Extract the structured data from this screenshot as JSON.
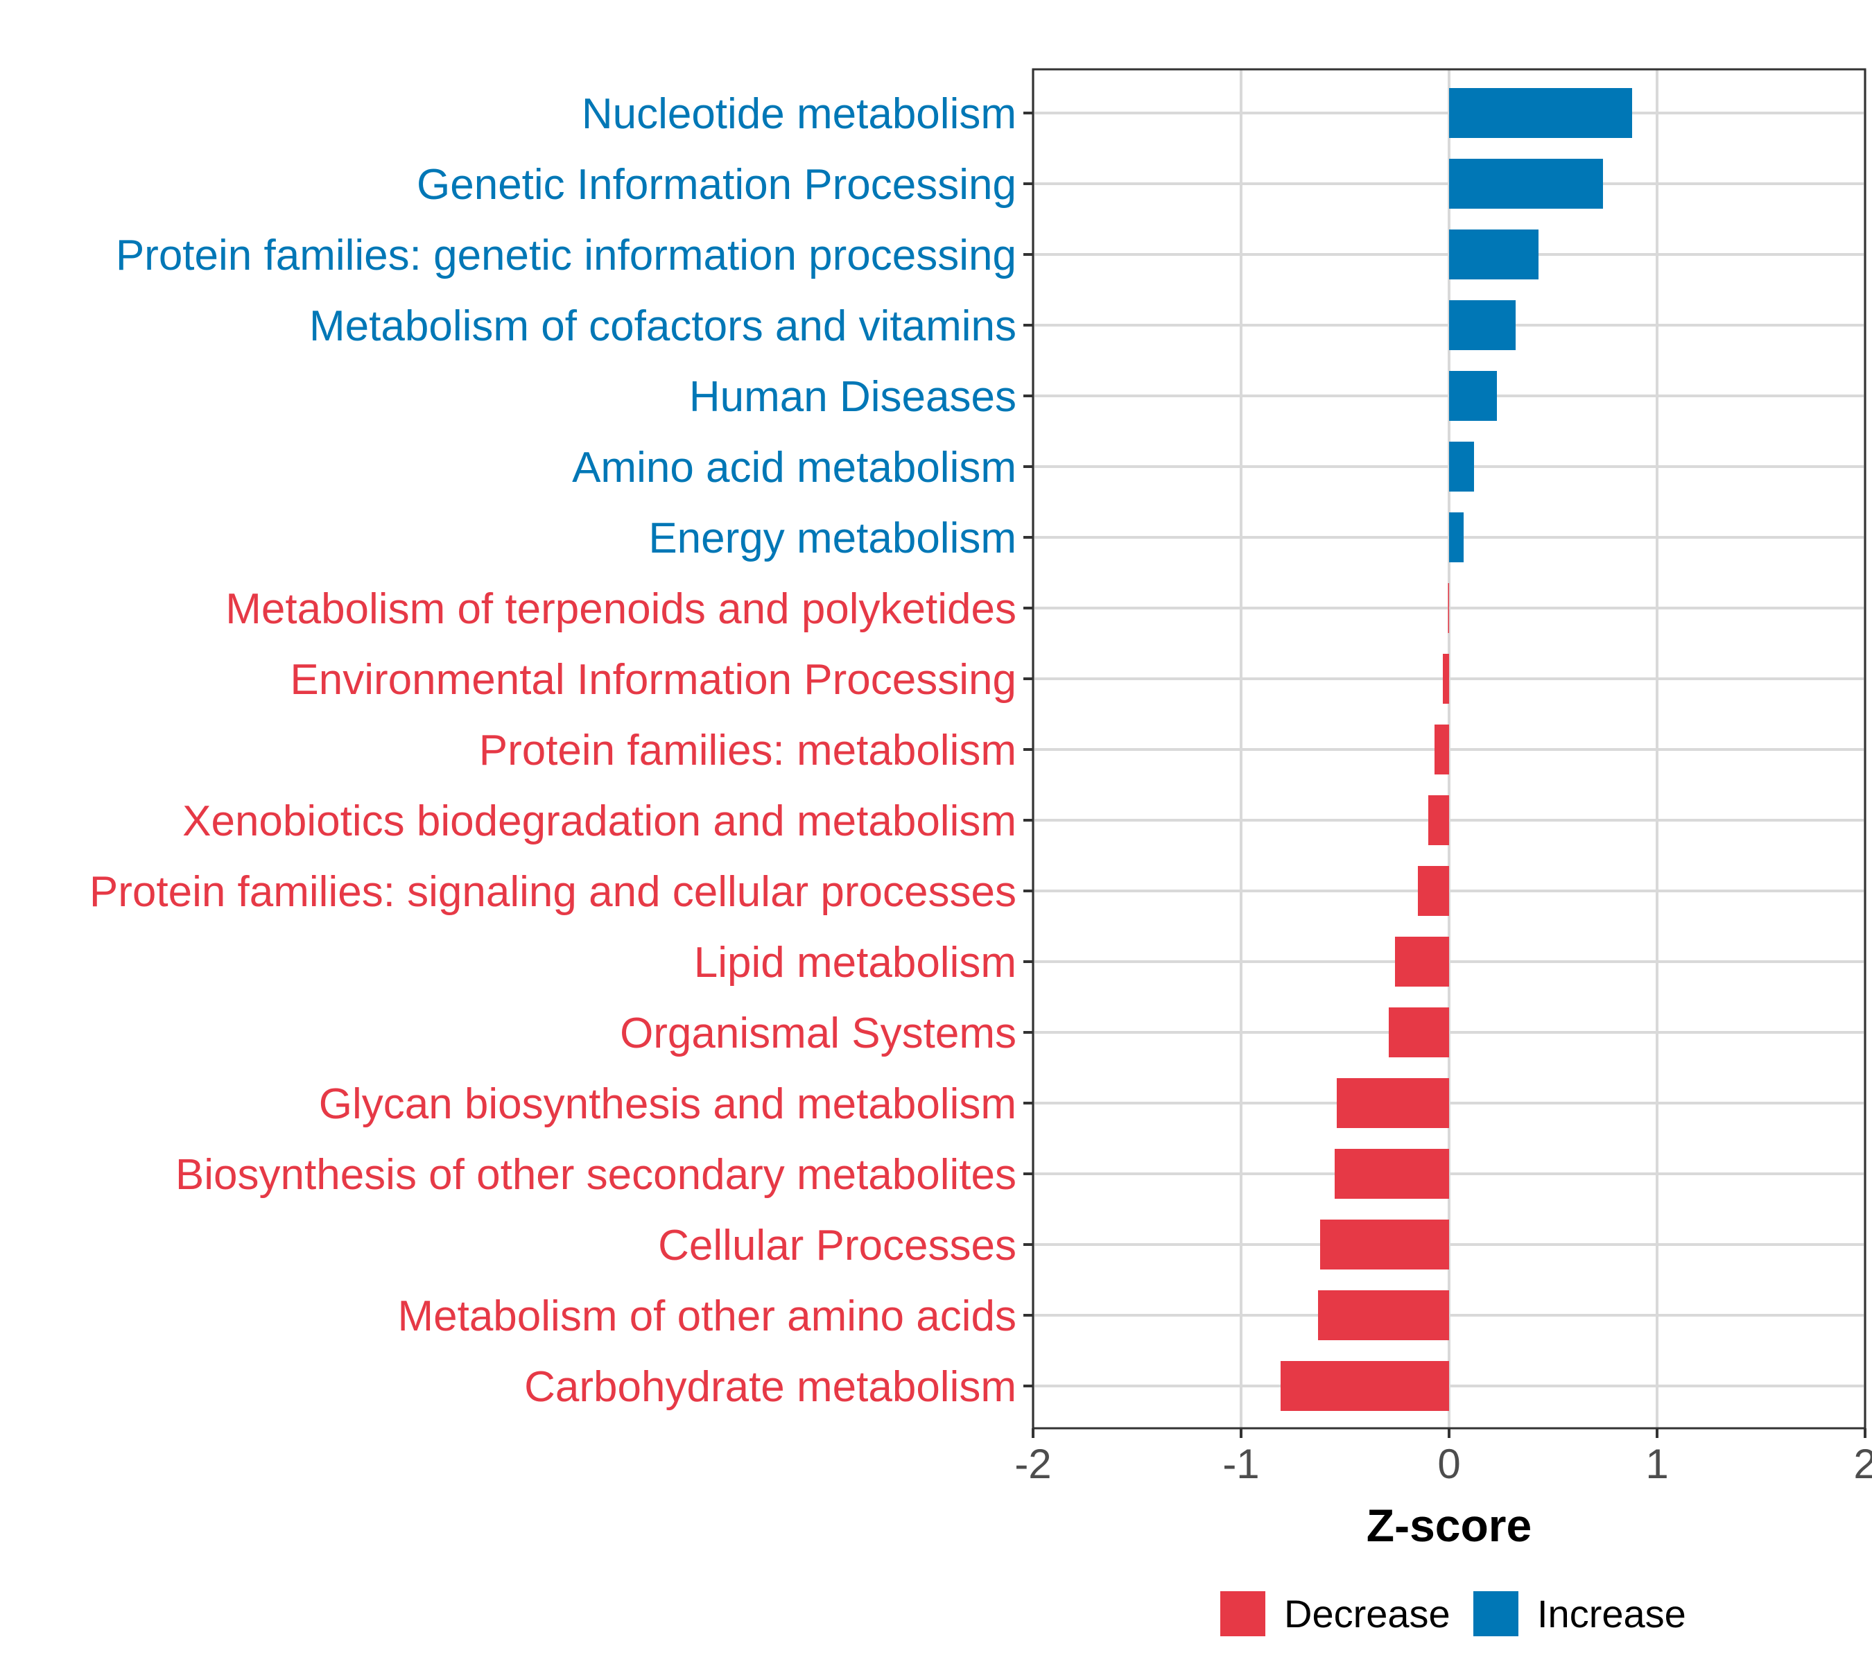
{
  "chart_data": {
    "type": "bar",
    "orientation": "horizontal",
    "title": "",
    "xlabel": "Z-score",
    "ylabel": "",
    "xlim": [
      -2,
      2
    ],
    "xticks": [
      "-2",
      "-1",
      "0",
      "1",
      "2"
    ],
    "xtick_values": [
      -2,
      -1,
      0,
      1,
      2
    ],
    "grid": true,
    "legend_position": "bottom",
    "colors": {
      "Decrease": "#e63946",
      "Increase": "#0077b6"
    },
    "legend": [
      {
        "name": "Decrease",
        "color": "#e63946"
      },
      {
        "name": "Increase",
        "color": "#0077b6"
      }
    ],
    "categories": [
      "Nucleotide metabolism",
      "Genetic Information Processing",
      "Protein families: genetic information processing",
      "Metabolism of cofactors and vitamins",
      "Human Diseases",
      "Amino acid metabolism",
      "Energy metabolism",
      "Metabolism of terpenoids and polyketides",
      "Environmental Information Processing",
      "Protein families: metabolism",
      "Xenobiotics biodegradation and metabolism",
      "Protein families: signaling and cellular processes",
      "Lipid metabolism",
      "Organismal Systems",
      "Glycan biosynthesis and metabolism",
      "Biosynthesis of other secondary metabolites",
      "Cellular Processes",
      "Metabolism of other amino acids",
      "Carbohydrate metabolism"
    ],
    "values": [
      0.88,
      0.74,
      0.43,
      0.32,
      0.23,
      0.12,
      0.07,
      -0.005,
      -0.03,
      -0.07,
      -0.1,
      -0.15,
      -0.26,
      -0.29,
      -0.54,
      -0.55,
      -0.62,
      -0.63,
      -0.81
    ],
    "groups": [
      "Increase",
      "Increase",
      "Increase",
      "Increase",
      "Increase",
      "Increase",
      "Increase",
      "Decrease",
      "Decrease",
      "Decrease",
      "Decrease",
      "Decrease",
      "Decrease",
      "Decrease",
      "Decrease",
      "Decrease",
      "Decrease",
      "Decrease",
      "Decrease"
    ]
  }
}
